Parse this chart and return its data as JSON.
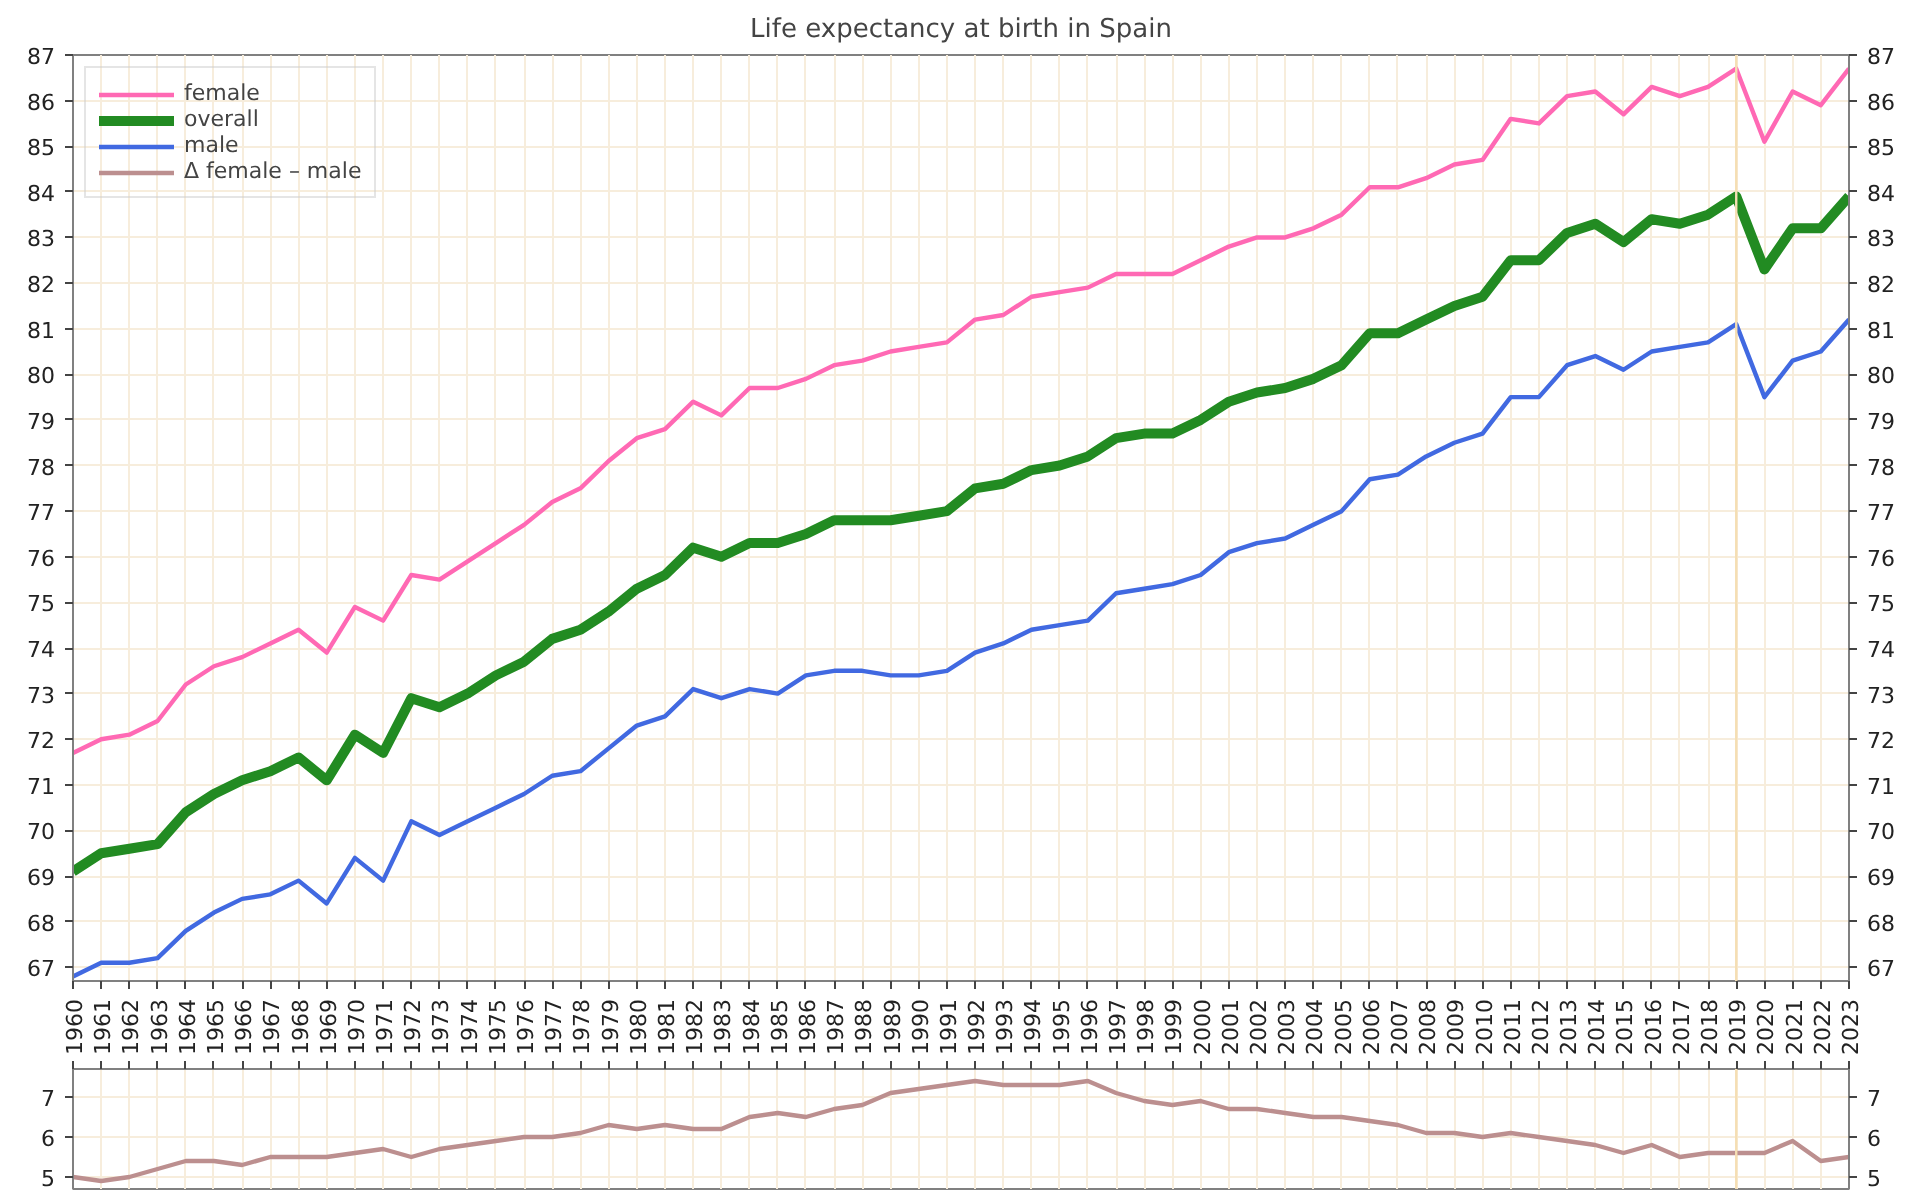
{
  "chart_data": [
    {
      "type": "line",
      "title": "Life expectancy at birth in Spain",
      "x": [
        1960,
        1961,
        1962,
        1963,
        1964,
        1965,
        1966,
        1967,
        1968,
        1969,
        1970,
        1971,
        1972,
        1973,
        1974,
        1975,
        1976,
        1977,
        1978,
        1979,
        1980,
        1981,
        1982,
        1983,
        1984,
        1985,
        1986,
        1987,
        1988,
        1989,
        1990,
        1991,
        1992,
        1993,
        1994,
        1995,
        1996,
        1997,
        1998,
        1999,
        2000,
        2001,
        2002,
        2003,
        2004,
        2005,
        2006,
        2007,
        2008,
        2009,
        2010,
        2011,
        2012,
        2013,
        2014,
        2015,
        2016,
        2017,
        2018,
        2019,
        2020,
        2021,
        2022,
        2023
      ],
      "series": [
        {
          "name": "female",
          "color": "#ff69b4",
          "values": [
            71.7,
            72.0,
            72.1,
            72.4,
            73.2,
            73.6,
            73.8,
            74.1,
            74.4,
            73.9,
            74.9,
            74.6,
            75.6,
            75.5,
            75.9,
            76.3,
            76.7,
            77.2,
            77.5,
            78.1,
            78.6,
            78.8,
            79.4,
            79.1,
            79.7,
            79.7,
            79.9,
            80.2,
            80.3,
            80.5,
            80.6,
            80.7,
            81.2,
            81.3,
            81.7,
            81.8,
            81.9,
            82.2,
            82.2,
            82.2,
            82.5,
            82.8,
            83.0,
            83.0,
            83.2,
            83.5,
            84.1,
            84.1,
            84.3,
            84.6,
            84.7,
            85.6,
            85.5,
            86.1,
            86.2,
            85.7,
            86.3,
            86.1,
            86.3,
            86.7,
            85.1,
            86.2,
            85.9,
            86.7
          ]
        },
        {
          "name": "overall",
          "color": "#228b22",
          "values": [
            69.1,
            69.5,
            69.6,
            69.7,
            70.4,
            70.8,
            71.1,
            71.3,
            71.6,
            71.1,
            72.1,
            71.7,
            72.9,
            72.7,
            73.0,
            73.4,
            73.7,
            74.2,
            74.4,
            74.8,
            75.3,
            75.6,
            76.2,
            76.0,
            76.3,
            76.3,
            76.5,
            76.8,
            76.8,
            76.8,
            76.9,
            77.0,
            77.5,
            77.6,
            77.9,
            78.0,
            78.2,
            78.6,
            78.7,
            78.7,
            79.0,
            79.4,
            79.6,
            79.7,
            79.9,
            80.2,
            80.9,
            80.9,
            81.2,
            81.5,
            81.7,
            82.5,
            82.5,
            83.1,
            83.3,
            82.9,
            83.4,
            83.3,
            83.5,
            83.9,
            82.3,
            83.2,
            83.2,
            83.9
          ]
        },
        {
          "name": "male",
          "color": "#4169e1",
          "values": [
            66.8,
            67.1,
            67.1,
            67.2,
            67.8,
            68.2,
            68.5,
            68.6,
            68.9,
            68.4,
            69.4,
            68.9,
            70.2,
            69.9,
            70.2,
            70.5,
            70.8,
            71.2,
            71.3,
            71.8,
            72.3,
            72.5,
            73.1,
            72.9,
            73.1,
            73.0,
            73.4,
            73.5,
            73.5,
            73.4,
            73.4,
            73.5,
            73.9,
            74.1,
            74.4,
            74.5,
            74.6,
            75.2,
            75.3,
            75.4,
            75.6,
            76.1,
            76.3,
            76.4,
            76.7,
            77.0,
            77.7,
            77.8,
            78.2,
            78.5,
            78.7,
            79.5,
            79.5,
            80.2,
            80.4,
            80.1,
            80.5,
            80.6,
            80.7,
            81.1,
            79.5,
            80.3,
            80.5,
            81.2
          ]
        }
      ],
      "xlim": [
        1960,
        2023
      ],
      "xticks": [
        1960,
        1961,
        1962,
        1963,
        1964,
        1965,
        1966,
        1967,
        1968,
        1969,
        1970,
        1971,
        1972,
        1973,
        1974,
        1975,
        1976,
        1977,
        1978,
        1979,
        1980,
        1981,
        1982,
        1983,
        1984,
        1985,
        1986,
        1987,
        1988,
        1989,
        1990,
        1991,
        1992,
        1993,
        1994,
        1995,
        1996,
        1997,
        1998,
        1999,
        2000,
        2001,
        2002,
        2003,
        2004,
        2005,
        2006,
        2007,
        2008,
        2009,
        2010,
        2011,
        2012,
        2013,
        2014,
        2015,
        2016,
        2017,
        2018,
        2019,
        2020,
        2021,
        2022,
        2023
      ],
      "ylim": [
        66.7,
        87
      ],
      "yticks": [
        67,
        68,
        69,
        70,
        71,
        72,
        73,
        74,
        75,
        76,
        77,
        78,
        79,
        80,
        81,
        82,
        83,
        84,
        85,
        86,
        87
      ],
      "y2lim": [
        66.7,
        87
      ],
      "y2ticks": [
        67,
        68,
        69,
        70,
        71,
        72,
        73,
        74,
        75,
        76,
        77,
        78,
        79,
        80,
        81,
        82,
        83,
        84,
        85,
        86,
        87
      ],
      "ref_lines": [
        {
          "axis": "x",
          "value": 2019,
          "color": "#f5deb3"
        }
      ],
      "grid": true,
      "legend": "top left",
      "line_style": "solid"
    },
    {
      "type": "line",
      "x": [
        1960,
        1961,
        1962,
        1963,
        1964,
        1965,
        1966,
        1967,
        1968,
        1969,
        1970,
        1971,
        1972,
        1973,
        1974,
        1975,
        1976,
        1977,
        1978,
        1979,
        1980,
        1981,
        1982,
        1983,
        1984,
        1985,
        1986,
        1987,
        1988,
        1989,
        1990,
        1991,
        1992,
        1993,
        1994,
        1995,
        1996,
        1997,
        1998,
        1999,
        2000,
        2001,
        2002,
        2003,
        2004,
        2005,
        2006,
        2007,
        2008,
        2009,
        2010,
        2011,
        2012,
        2013,
        2014,
        2015,
        2016,
        2017,
        2018,
        2019,
        2020,
        2021,
        2022,
        2023
      ],
      "series": [
        {
          "name": "Δ female – male",
          "color": "#bc8f8f",
          "values": [
            5.0,
            4.9,
            5.0,
            5.2,
            5.4,
            5.4,
            5.3,
            5.5,
            5.5,
            5.5,
            5.6,
            5.7,
            5.5,
            5.7,
            5.8,
            5.9,
            6.0,
            6.0,
            6.1,
            6.3,
            6.2,
            6.3,
            6.2,
            6.2,
            6.5,
            6.6,
            6.5,
            6.7,
            6.8,
            7.1,
            7.2,
            7.3,
            7.4,
            7.3,
            7.3,
            7.3,
            7.4,
            7.1,
            6.9,
            6.8,
            6.9,
            6.7,
            6.7,
            6.6,
            6.5,
            6.5,
            6.4,
            6.3,
            6.1,
            6.1,
            6.0,
            6.1,
            6.0,
            5.9,
            5.8,
            5.6,
            5.8,
            5.5,
            5.6,
            5.6,
            5.6,
            5.9,
            5.4,
            5.5
          ]
        }
      ],
      "xlim": [
        1960,
        2023
      ],
      "xticks": [
        1960,
        1961,
        1962,
        1963,
        1964,
        1965,
        1966,
        1967,
        1968,
        1969,
        1970,
        1971,
        1972,
        1973,
        1974,
        1975,
        1976,
        1977,
        1978,
        1979,
        1980,
        1981,
        1982,
        1983,
        1984,
        1985,
        1986,
        1987,
        1988,
        1989,
        1990,
        1991,
        1992,
        1993,
        1994,
        1995,
        1996,
        1997,
        1998,
        1999,
        2000,
        2001,
        2002,
        2003,
        2004,
        2005,
        2006,
        2007,
        2008,
        2009,
        2010,
        2011,
        2012,
        2013,
        2014,
        2015,
        2016,
        2017,
        2018,
        2019,
        2020,
        2021,
        2022,
        2023
      ],
      "ylim": [
        4.7,
        7.7
      ],
      "yticks": [
        5,
        6,
        7
      ],
      "y2lim": [
        4.7,
        7.7
      ],
      "y2ticks": [
        5,
        6,
        7
      ],
      "ref_lines": [
        {
          "axis": "x",
          "value": 2019,
          "color": "#f5deb3"
        }
      ],
      "tick_labels": "y",
      "grid": true,
      "line_style": "solid"
    }
  ]
}
